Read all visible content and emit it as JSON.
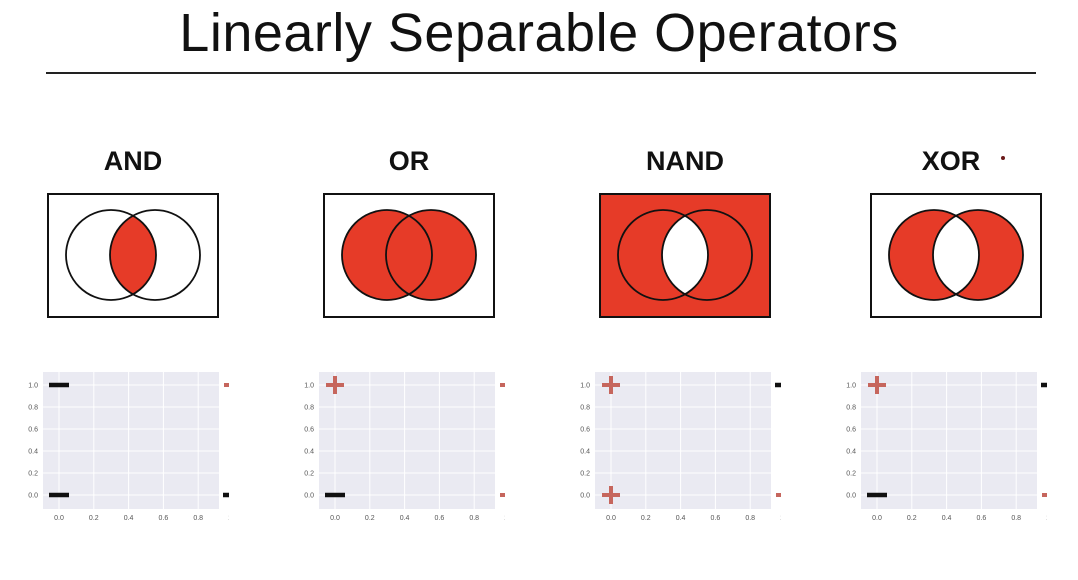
{
  "title": "Linearly Separable Operators",
  "colors": {
    "fill": "#e63b28",
    "plot_bg": "#eaeaf2",
    "plus": "#c6665d",
    "minus": "#111111"
  },
  "ticks": [
    "0.0",
    "0.2",
    "0.4",
    "0.6",
    "0.8",
    "1.0"
  ],
  "operators": [
    {
      "label": "AND",
      "venn": "intersection",
      "points": [
        {
          "x": 0,
          "y": 1,
          "sign": "-"
        },
        {
          "x": 1,
          "y": 1,
          "sign": "+"
        },
        {
          "x": 0,
          "y": 0,
          "sign": "-"
        },
        {
          "x": 1,
          "y": 0,
          "sign": "-"
        }
      ]
    },
    {
      "label": "OR",
      "venn": "union",
      "points": [
        {
          "x": 0,
          "y": 1,
          "sign": "+"
        },
        {
          "x": 1,
          "y": 1,
          "sign": "+"
        },
        {
          "x": 0,
          "y": 0,
          "sign": "-"
        },
        {
          "x": 1,
          "y": 0,
          "sign": "+"
        }
      ]
    },
    {
      "label": "NAND",
      "venn": "complement-intersection",
      "points": [
        {
          "x": 0,
          "y": 1,
          "sign": "+"
        },
        {
          "x": 1,
          "y": 1,
          "sign": "-"
        },
        {
          "x": 0,
          "y": 0,
          "sign": "+"
        },
        {
          "x": 1,
          "y": 0,
          "sign": "+"
        }
      ]
    },
    {
      "label": "XOR",
      "venn": "symmetric-difference",
      "points": [
        {
          "x": 0,
          "y": 1,
          "sign": "+"
        },
        {
          "x": 1,
          "y": 1,
          "sign": "-"
        },
        {
          "x": 0,
          "y": 0,
          "sign": "-"
        },
        {
          "x": 1,
          "y": 0,
          "sign": "+"
        }
      ]
    }
  ],
  "chart_data": [
    {
      "type": "scatter",
      "title": "",
      "xlabel": "",
      "ylabel": "",
      "xlim": [
        0,
        1
      ],
      "ylim": [
        0,
        1
      ],
      "grid": true,
      "series": [
        {
          "values": [
            {
              "x": 0,
              "y": 1,
              "sign": "-"
            },
            {
              "x": 1,
              "y": 1,
              "sign": "+"
            },
            {
              "x": 0,
              "y": 0,
              "sign": "-"
            },
            {
              "x": 1,
              "y": 0,
              "sign": "-"
            }
          ]
        }
      ]
    },
    {
      "type": "scatter",
      "title": "",
      "xlabel": "",
      "ylabel": "",
      "xlim": [
        0,
        1
      ],
      "ylim": [
        0,
        1
      ],
      "grid": true,
      "series": [
        {
          "values": [
            {
              "x": 0,
              "y": 1,
              "sign": "+"
            },
            {
              "x": 1,
              "y": 1,
              "sign": "+"
            },
            {
              "x": 0,
              "y": 0,
              "sign": "-"
            },
            {
              "x": 1,
              "y": 0,
              "sign": "+"
            }
          ]
        }
      ]
    },
    {
      "type": "scatter",
      "title": "",
      "xlabel": "",
      "ylabel": "",
      "xlim": [
        0,
        1
      ],
      "ylim": [
        0,
        1
      ],
      "grid": true,
      "series": [
        {
          "values": [
            {
              "x": 0,
              "y": 1,
              "sign": "+"
            },
            {
              "x": 1,
              "y": 1,
              "sign": "-"
            },
            {
              "x": 0,
              "y": 0,
              "sign": "+"
            },
            {
              "x": 1,
              "y": 0,
              "sign": "+"
            }
          ]
        }
      ]
    },
    {
      "type": "scatter",
      "title": "",
      "xlabel": "",
      "ylabel": "",
      "xlim": [
        0,
        1
      ],
      "ylim": [
        0,
        1
      ],
      "grid": true,
      "series": [
        {
          "values": [
            {
              "x": 0,
              "y": 1,
              "sign": "+"
            },
            {
              "x": 1,
              "y": 1,
              "sign": "-"
            },
            {
              "x": 0,
              "y": 0,
              "sign": "-"
            },
            {
              "x": 1,
              "y": 0,
              "sign": "+"
            }
          ]
        }
      ]
    }
  ]
}
